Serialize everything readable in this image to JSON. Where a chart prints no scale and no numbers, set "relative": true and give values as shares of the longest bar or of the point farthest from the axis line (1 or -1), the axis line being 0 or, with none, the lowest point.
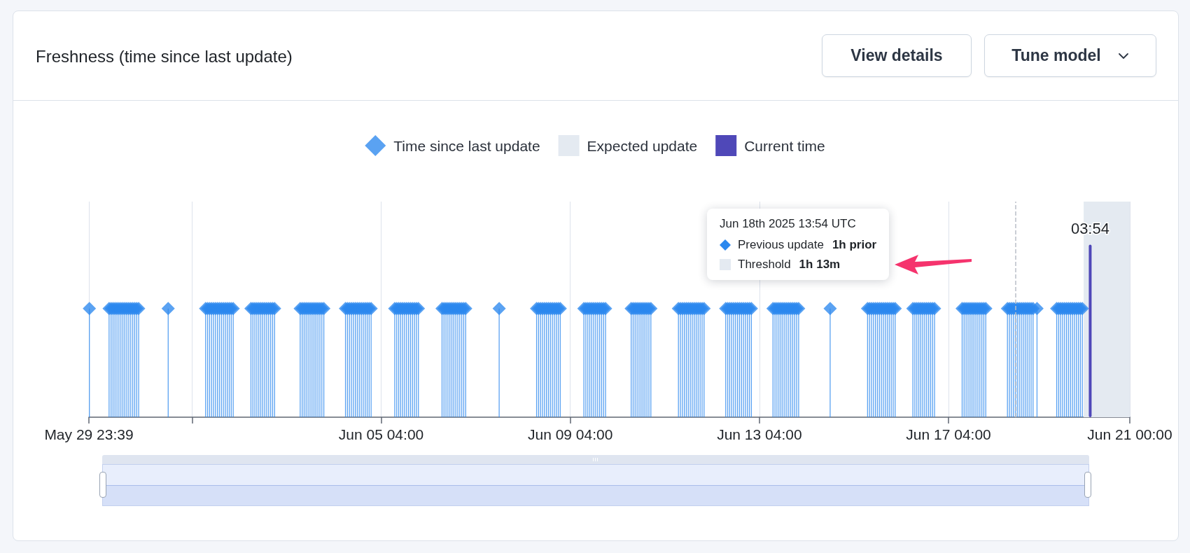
{
  "chart_data": {
    "type": "lollipop",
    "title": "Freshness (time since last update)",
    "annotations": [
      "View details",
      "Tune model",
      "Jun 18th 2025 13:54 UTC",
      "Previous update",
      "1h prior",
      "Threshold",
      "1h 13m",
      {
        "text": "03:54",
        "x": "2025-06-20T03:54",
        "y": 1
      }
    ],
    "relative": true,
    "xlim": [
      "2025-05-29T23:39",
      "2025-06-21T00:00"
    ],
    "xticks": [
      {
        "value": "2025-05-29T23:39",
        "label": "May 29 23:39"
      },
      {
        "value": "2025-06-01T04:00",
        "label": null
      },
      {
        "value": "2025-06-05T04:00",
        "label": "Jun 05 04:00"
      },
      {
        "value": "2025-06-09T04:00",
        "label": "Jun 09 04:00"
      },
      {
        "value": "2025-06-13T04:00",
        "label": "Jun 13 04:00"
      },
      {
        "value": "2025-06-17T04:00",
        "label": "Jun 17 04:00"
      },
      {
        "value": "2025-06-21T00:00",
        "label": "Jun 21 00:00"
      }
    ],
    "grid": "x",
    "legend": "top",
    "marker": "diamond",
    "series": [
      {
        "name": "Time since last update",
        "color": "#2b88ee",
        "x": [
          "2025-05-29T23:54",
          "2025-05-30T09:54",
          "2025-05-30T10:54",
          "2025-05-30T11:54",
          "2025-05-30T12:54",
          "2025-05-30T13:54",
          "2025-05-30T14:54",
          "2025-05-30T15:54",
          "2025-05-30T16:54",
          "2025-05-30T17:54",
          "2025-05-30T18:54",
          "2025-05-30T19:54",
          "2025-05-30T20:54",
          "2025-05-30T21:54",
          "2025-05-30T22:54",
          "2025-05-30T23:54",
          "2025-05-31T00:54",
          "2025-05-31T15:54",
          "2025-06-01T10:54",
          "2025-06-01T11:54",
          "2025-06-01T12:54",
          "2025-06-01T13:54",
          "2025-06-01T14:54",
          "2025-06-01T15:54",
          "2025-06-01T16:54",
          "2025-06-01T17:54",
          "2025-06-01T18:54",
          "2025-06-01T19:54",
          "2025-06-01T20:54",
          "2025-06-01T21:54",
          "2025-06-01T22:54",
          "2025-06-01T23:54",
          "2025-06-02T00:54",
          "2025-06-02T09:54",
          "2025-06-02T10:54",
          "2025-06-02T11:54",
          "2025-06-02T12:54",
          "2025-06-02T13:54",
          "2025-06-02T14:54",
          "2025-06-02T15:54",
          "2025-06-02T16:54",
          "2025-06-02T17:54",
          "2025-06-02T18:54",
          "2025-06-02T19:54",
          "2025-06-02T20:54",
          "2025-06-02T21:54",
          "2025-06-03T10:54",
          "2025-06-03T11:54",
          "2025-06-03T12:54",
          "2025-06-03T13:54",
          "2025-06-03T14:54",
          "2025-06-03T15:54",
          "2025-06-03T16:54",
          "2025-06-03T17:54",
          "2025-06-03T18:54",
          "2025-06-03T19:54",
          "2025-06-03T20:54",
          "2025-06-03T21:54",
          "2025-06-03T22:54",
          "2025-06-04T09:54",
          "2025-06-04T10:54",
          "2025-06-04T11:54",
          "2025-06-04T12:54",
          "2025-06-04T13:54",
          "2025-06-04T14:54",
          "2025-06-04T15:54",
          "2025-06-04T16:54",
          "2025-06-04T17:54",
          "2025-06-04T18:54",
          "2025-06-04T19:54",
          "2025-06-04T20:54",
          "2025-06-04T21:54",
          "2025-06-04T22:54",
          "2025-06-05T10:54",
          "2025-06-05T11:54",
          "2025-06-05T12:54",
          "2025-06-05T13:54",
          "2025-06-05T14:54",
          "2025-06-05T15:54",
          "2025-06-05T16:54",
          "2025-06-05T17:54",
          "2025-06-05T18:54",
          "2025-06-05T19:54",
          "2025-06-05T20:54",
          "2025-06-05T21:54",
          "2025-06-05T22:54",
          "2025-06-06T10:54",
          "2025-06-06T11:54",
          "2025-06-06T12:54",
          "2025-06-06T13:54",
          "2025-06-06T14:54",
          "2025-06-06T15:54",
          "2025-06-06T16:54",
          "2025-06-06T17:54",
          "2025-06-06T18:54",
          "2025-06-06T19:54",
          "2025-06-06T20:54",
          "2025-06-06T21:54",
          "2025-06-06T22:54",
          "2025-06-07T15:54",
          "2025-06-08T10:54",
          "2025-06-08T11:54",
          "2025-06-08T12:54",
          "2025-06-08T13:54",
          "2025-06-08T14:54",
          "2025-06-08T15:54",
          "2025-06-08T16:54",
          "2025-06-08T17:54",
          "2025-06-08T18:54",
          "2025-06-08T19:54",
          "2025-06-08T20:54",
          "2025-06-08T21:54",
          "2025-06-08T22:54",
          "2025-06-09T10:54",
          "2025-06-09T11:54",
          "2025-06-09T12:54",
          "2025-06-09T13:54",
          "2025-06-09T14:54",
          "2025-06-09T15:54",
          "2025-06-09T16:54",
          "2025-06-09T17:54",
          "2025-06-09T18:54",
          "2025-06-09T19:54",
          "2025-06-09T20:54",
          "2025-06-09T21:54",
          "2025-06-10T10:54",
          "2025-06-10T11:54",
          "2025-06-10T12:54",
          "2025-06-10T13:54",
          "2025-06-10T14:54",
          "2025-06-10T15:54",
          "2025-06-10T16:54",
          "2025-06-10T17:54",
          "2025-06-10T18:54",
          "2025-06-10T19:54",
          "2025-06-10T20:54",
          "2025-06-11T10:54",
          "2025-06-11T11:54",
          "2025-06-11T12:54",
          "2025-06-11T13:54",
          "2025-06-11T14:54",
          "2025-06-11T15:54",
          "2025-06-11T16:54",
          "2025-06-11T17:54",
          "2025-06-11T18:54",
          "2025-06-11T19:54",
          "2025-06-11T20:54",
          "2025-06-11T21:54",
          "2025-06-11T22:54",
          "2025-06-11T23:54",
          "2025-06-12T10:54",
          "2025-06-12T11:54",
          "2025-06-12T12:54",
          "2025-06-12T13:54",
          "2025-06-12T14:54",
          "2025-06-12T15:54",
          "2025-06-12T16:54",
          "2025-06-12T17:54",
          "2025-06-12T18:54",
          "2025-06-12T19:54",
          "2025-06-12T20:54",
          "2025-06-12T21:54",
          "2025-06-12T22:54",
          "2025-06-12T23:54",
          "2025-06-13T10:54",
          "2025-06-13T11:54",
          "2025-06-13T12:54",
          "2025-06-13T13:54",
          "2025-06-13T14:54",
          "2025-06-13T15:54",
          "2025-06-13T16:54",
          "2025-06-13T17:54",
          "2025-06-13T18:54",
          "2025-06-13T19:54",
          "2025-06-13T20:54",
          "2025-06-13T21:54",
          "2025-06-13T22:54",
          "2025-06-13T23:54",
          "2025-06-14T15:54",
          "2025-06-15T10:54",
          "2025-06-15T11:54",
          "2025-06-15T12:54",
          "2025-06-15T13:54",
          "2025-06-15T14:54",
          "2025-06-15T15:54",
          "2025-06-15T16:54",
          "2025-06-15T17:54",
          "2025-06-15T18:54",
          "2025-06-15T19:54",
          "2025-06-15T20:54",
          "2025-06-15T21:54",
          "2025-06-15T22:54",
          "2025-06-15T23:54",
          "2025-06-16T00:54",
          "2025-06-16T09:54",
          "2025-06-16T10:54",
          "2025-06-16T11:54",
          "2025-06-16T12:54",
          "2025-06-16T13:54",
          "2025-06-16T14:54",
          "2025-06-16T15:54",
          "2025-06-16T16:54",
          "2025-06-16T17:54",
          "2025-06-16T18:54",
          "2025-06-16T19:54",
          "2025-06-16T20:54",
          "2025-06-17T10:54",
          "2025-06-17T11:54",
          "2025-06-17T12:54",
          "2025-06-17T13:54",
          "2025-06-17T14:54",
          "2025-06-17T15:54",
          "2025-06-17T16:54",
          "2025-06-17T17:54",
          "2025-06-17T18:54",
          "2025-06-17T19:54",
          "2025-06-17T20:54",
          "2025-06-17T21:54",
          "2025-06-17T22:54",
          "2025-06-18T09:54",
          "2025-06-18T10:54",
          "2025-06-18T11:54",
          "2025-06-18T12:54",
          "2025-06-18T13:54",
          "2025-06-18T14:54",
          "2025-06-18T15:54",
          "2025-06-18T16:54",
          "2025-06-18T17:54",
          "2025-06-18T18:54",
          "2025-06-18T19:54",
          "2025-06-18T20:54",
          "2025-06-18T21:54",
          "2025-06-18T22:54",
          "2025-06-19T00:54",
          "2025-06-19T10:54",
          "2025-06-19T11:54",
          "2025-06-19T12:54",
          "2025-06-19T13:54",
          "2025-06-19T14:54",
          "2025-06-19T15:54",
          "2025-06-19T16:54",
          "2025-06-19T17:54",
          "2025-06-19T18:54",
          "2025-06-19T19:54",
          "2025-06-19T20:54",
          "2025-06-19T21:54",
          "2025-06-19T22:54",
          "2025-06-19T23:54"
        ],
        "values": [
          0.63,
          0.63,
          0.63,
          0.63,
          0.63,
          0.63,
          0.63,
          0.63,
          0.63,
          0.63,
          0.63,
          0.63,
          0.63,
          0.63,
          0.63,
          0.63,
          0.63,
          0.63,
          0.63,
          0.63,
          0.63,
          0.63,
          0.63,
          0.63,
          0.63,
          0.63,
          0.63,
          0.63,
          0.63,
          0.63,
          0.63,
          0.63,
          0.63,
          0.63,
          0.63,
          0.63,
          0.63,
          0.63,
          0.63,
          0.63,
          0.63,
          0.63,
          0.63,
          0.63,
          0.63,
          0.63,
          0.63,
          0.63,
          0.63,
          0.63,
          0.63,
          0.63,
          0.63,
          0.63,
          0.63,
          0.63,
          0.63,
          0.63,
          0.63,
          0.63,
          0.63,
          0.63,
          0.63,
          0.63,
          0.63,
          0.63,
          0.63,
          0.63,
          0.63,
          0.63,
          0.63,
          0.63,
          0.63,
          0.63,
          0.63,
          0.63,
          0.63,
          0.63,
          0.63,
          0.63,
          0.63,
          0.63,
          0.63,
          0.63,
          0.63,
          0.63,
          0.63,
          0.63,
          0.63,
          0.63,
          0.63,
          0.63,
          0.63,
          0.63,
          0.63,
          0.63,
          0.63,
          0.63,
          0.63,
          0.63,
          0.63,
          0.63,
          0.63,
          0.63,
          0.63,
          0.63,
          0.63,
          0.63,
          0.63,
          0.63,
          0.63,
          0.63,
          0.63,
          0.63,
          0.63,
          0.63,
          0.63,
          0.63,
          0.63,
          0.63,
          0.63,
          0.63,
          0.63,
          0.63,
          0.63,
          0.63,
          0.63,
          0.63,
          0.63,
          0.63,
          0.63,
          0.63,
          0.63,
          0.63,
          0.63,
          0.63,
          0.63,
          0.63,
          0.63,
          0.63,
          0.63,
          0.63,
          0.63,
          0.63,
          0.63,
          0.63,
          0.63,
          0.63,
          0.63,
          0.63,
          0.63,
          0.63,
          0.63,
          0.63,
          0.63,
          0.63,
          0.63,
          0.63,
          0.63,
          0.63,
          0.63,
          0.63,
          0.63,
          0.63,
          0.63,
          0.63,
          0.63,
          0.63,
          0.63,
          0.63,
          0.63,
          0.63,
          0.63,
          0.63,
          0.63,
          0.63,
          0.63,
          0.63,
          0.63,
          0.63,
          0.63,
          0.63,
          0.63,
          0.63,
          0.63,
          0.63,
          0.63,
          0.63,
          0.63,
          0.63,
          0.63,
          0.63,
          0.63,
          0.63,
          0.63,
          0.63,
          0.63,
          0.63,
          0.63,
          0.63,
          0.63,
          0.63,
          0.63,
          0.63,
          0.63,
          0.63,
          0.63,
          0.63,
          0.63,
          0.63,
          0.63,
          0.63,
          0.63,
          0.63,
          0.63,
          0.63,
          0.63,
          0.63,
          0.63,
          0.63,
          0.63,
          0.63,
          0.63,
          0.63,
          0.63,
          0.63,
          0.63,
          0.63,
          0.63,
          0.63,
          0.63,
          0.63,
          0.63,
          0.63,
          0.63,
          0.63,
          0.63,
          0.63,
          0.63,
          0.63,
          0.63,
          0.63,
          0.63,
          0.63,
          0.63,
          0.63,
          0.63,
          0.63
        ]
      },
      {
        "name": "Current time",
        "type": "bar",
        "color": "#4f48b8",
        "x": [
          "2025-06-20T03:54"
        ],
        "values": [
          1
        ]
      }
    ],
    "bands": [
      {
        "axis": "x",
        "from": "2025-06-20T00:35",
        "to": "2025-06-21T00:00",
        "label": "Expected update",
        "color": "#e4eaf1"
      }
    ],
    "ref_lines": [
      {
        "axis": "x",
        "value": "2025-06-18T13:54",
        "line_style": "dashed",
        "color": "#b9bec8"
      }
    ]
  }
}
